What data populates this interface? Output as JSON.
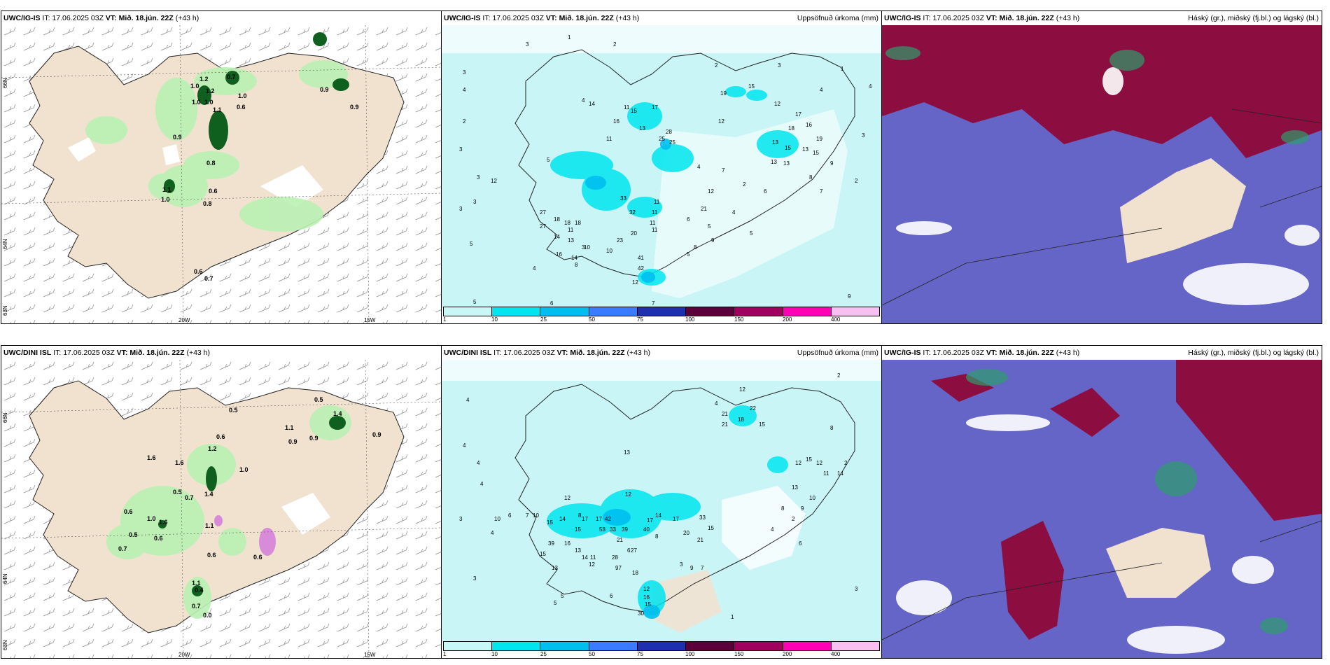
{
  "rows": [
    {
      "wind_panel": {
        "model": "UWC/IG-IS",
        "it_label": "IT:",
        "it": "17.06.2025 03Z",
        "vt_label": "VT:",
        "vt": "Mið. 18.jún. 22Z",
        "lead": "(+43 h)"
      },
      "precip_panel": {
        "model": "UWC/IG-IS",
        "it_label": "IT:",
        "it": "17.06.2025 03Z",
        "vt_label": "VT:",
        "vt": "Mið. 18.jún. 22Z",
        "lead": "(+43 h)",
        "title": "Uppsöfnuð úrkoma (mm)"
      },
      "cloud_panel": {
        "model": "UWC/IG-IS",
        "it_label": "IT:",
        "it": "17.06.2025 03Z",
        "vt_label": "VT:",
        "vt": "Mið. 18.jún. 22Z",
        "lead": "(+43 h)",
        "title": "Háský (gr.), miðský (fj.bl.) og lágský (bl.)"
      },
      "wind_values": [
        "1.2",
        "1.0",
        "0.7",
        "1.2",
        "1.0",
        "1.0",
        "1.0",
        "1.1",
        "0.6",
        "0.9",
        "0.9",
        "0.8",
        "0.6",
        "0.8",
        "0.6",
        "0.7",
        "0.9",
        "1.1",
        "1.0"
      ],
      "precip_values": [
        "3",
        "3",
        "3",
        "2",
        "5",
        "4",
        "3",
        "3",
        "1",
        "2",
        "3",
        "1",
        "3",
        "12",
        "4",
        "5",
        "5",
        "6",
        "2",
        "4",
        "4",
        "6",
        "5",
        "4",
        "11",
        "14",
        "16",
        "11",
        "13",
        "15",
        "17",
        "28",
        "25",
        "25",
        "19",
        "12",
        "15",
        "12",
        "18",
        "17",
        "13",
        "15",
        "13",
        "13",
        "13",
        "19",
        "16",
        "15",
        "12",
        "27",
        "27",
        "18",
        "18",
        "18",
        "33",
        "32",
        "13",
        "20",
        "14",
        "11",
        "23",
        "10",
        "11",
        "41",
        "42",
        "12",
        "8",
        "14",
        "16",
        "10",
        "11",
        "21",
        "11",
        "11",
        "5",
        "9",
        "8",
        "9",
        "7",
        "4",
        "3",
        "2",
        "4",
        "2",
        "3",
        "8",
        "7",
        "9",
        "6",
        "5",
        "7"
      ]
    },
    {
      "wind_panel": {
        "model": "UWC/DINI ISL",
        "it_label": "IT:",
        "it": "17.06.2025 03Z",
        "vt_label": "VT:",
        "vt": "Mið. 18.jún. 22Z",
        "lead": "(+43 h)"
      },
      "precip_panel": {
        "model": "UWC/DINI ISL",
        "it_label": "IT:",
        "it": "17.06.2025 03Z",
        "vt_label": "VT:",
        "vt": "Mið. 18.jún. 22Z",
        "lead": "(+43 h)",
        "title": "Uppsöfnuð úrkoma (mm)"
      },
      "cloud_panel": {
        "model": "UWC/IG-IS",
        "it_label": "IT:",
        "it": "17.06.2025 03Z",
        "vt_label": "VT:",
        "vt": "Mið. 18.jún. 22Z",
        "lead": "(+43 h)",
        "title": "Háský (gr.), miðský (fj.bl.) og lágský (bl.)"
      },
      "wind_values": [
        "0.5",
        "1.4",
        "0.5",
        "1.1",
        "0.9",
        "0.9",
        "0.9",
        "1.6",
        "1.6",
        "0.6",
        "1.2",
        "1.0",
        "1.4",
        "0.5",
        "0.7",
        "0.6",
        "1.0",
        "1.6",
        "0.5",
        "0.6",
        "1.1",
        "0.6",
        "0.7",
        "1.1",
        "0.4",
        "0.7",
        "0.6",
        "0.0"
      ],
      "precip_values": [
        "4",
        "4",
        "4",
        "4",
        "3",
        "2",
        "5",
        "4",
        "3",
        "10",
        "6",
        "7",
        "10",
        "2",
        "8",
        "12",
        "13",
        "15",
        "14",
        "15",
        "12",
        "17",
        "17",
        "42",
        "17",
        "14",
        "17",
        "58",
        "33",
        "39",
        "21",
        "40",
        "28",
        "20",
        "27",
        "33",
        "15",
        "21",
        "39",
        "16",
        "13",
        "15",
        "12",
        "14",
        "11",
        "13",
        "97",
        "18",
        "15",
        "30",
        "12",
        "16",
        "12",
        "21",
        "22",
        "18",
        "21",
        "15",
        "8",
        "15",
        "12",
        "12",
        "11",
        "14",
        "13",
        "10",
        "9",
        "8",
        "3",
        "2",
        "4",
        "8",
        "6",
        "6",
        "5",
        "7",
        "9",
        "6",
        "4",
        "3",
        "1"
      ]
    }
  ],
  "colorbar": {
    "labels": [
      "1",
      "10",
      "25",
      "50",
      "75",
      "100",
      "150",
      "200",
      "400"
    ],
    "colors": [
      "#c8f7f7",
      "#00e5ee",
      "#00bfee",
      "#3a7bff",
      "#1e2fb0",
      "#5b003a",
      "#a0005e",
      "#ff00b4",
      "#f8c0f0"
    ]
  },
  "axes": {
    "lon_labels": [
      "20W",
      "15W"
    ],
    "lat_labels": [
      "66N",
      "64N",
      "63N"
    ]
  },
  "colors": {
    "land": "#f1e2d0",
    "sea_precip": "#c9f5f7",
    "green_light": "#b9f1b3",
    "green_dark": "#0f5f1f",
    "cloud_high": "#8c0d3f",
    "cloud_mid": "#6565c8",
    "cloud_low": "#4b76d8"
  }
}
